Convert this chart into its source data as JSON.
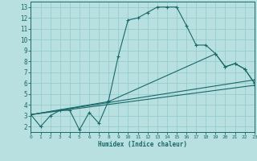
{
  "xlabel": "Humidex (Indice chaleur)",
  "bg_color": "#b8e0e0",
  "grid_color": "#90c8c8",
  "line_color": "#1a6868",
  "xlim": [
    0,
    23
  ],
  "ylim": [
    1.5,
    13.5
  ],
  "xticks": [
    0,
    1,
    2,
    3,
    4,
    5,
    6,
    7,
    8,
    9,
    10,
    11,
    12,
    13,
    14,
    15,
    16,
    17,
    18,
    19,
    20,
    21,
    22,
    23
  ],
  "yticks": [
    2,
    3,
    4,
    5,
    6,
    7,
    8,
    9,
    10,
    11,
    12,
    13
  ],
  "series_main_x": [
    0,
    1,
    2,
    3,
    4,
    5,
    6,
    7,
    8,
    9,
    10,
    11,
    12,
    13,
    14,
    15,
    16,
    17,
    18,
    19,
    20,
    21,
    22,
    23
  ],
  "series_main_y": [
    3.1,
    2.0,
    3.0,
    3.5,
    3.5,
    1.7,
    3.3,
    2.3,
    4.4,
    8.5,
    11.8,
    12.0,
    12.5,
    13.0,
    13.0,
    13.0,
    11.3,
    9.5,
    9.5,
    8.7,
    7.5,
    7.8,
    7.3,
    6.0
  ],
  "series_line1_x": [
    0,
    8,
    19,
    20,
    21,
    22,
    23
  ],
  "series_line1_y": [
    3.1,
    4.3,
    8.7,
    7.5,
    7.8,
    7.3,
    6.0
  ],
  "series_line2_x": [
    0,
    23
  ],
  "series_line2_y": [
    3.1,
    6.3
  ],
  "series_line3_x": [
    0,
    23
  ],
  "series_line3_y": [
    3.1,
    5.8
  ]
}
